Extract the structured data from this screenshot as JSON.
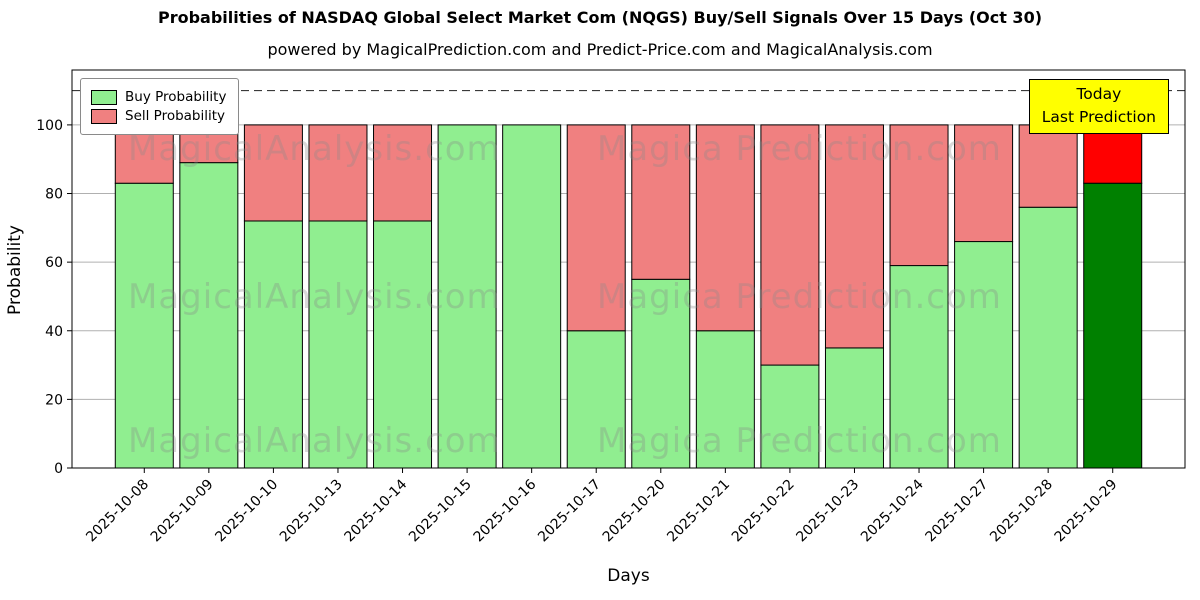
{
  "header": {
    "title": "Probabilities of NASDAQ Global Select Market Com (NQGS) Buy/Sell Signals Over 15 Days (Oct 30)",
    "subtitle": "powered by MagicalPrediction.com and Predict-Price.com and MagicalAnalysis.com"
  },
  "axes": {
    "xlabel": "Days",
    "ylabel": "Probability"
  },
  "legend": {
    "items": [
      {
        "label": "Buy Probability",
        "color": "#90ee90"
      },
      {
        "label": "Sell Probability",
        "color": "#f08080"
      }
    ]
  },
  "annotation": {
    "line1": "Today",
    "line2": "Last Prediction",
    "bg": "#ffff00",
    "border": "#000000"
  },
  "watermarks": {
    "rows": [
      {
        "left": "MagicalAnalysis.com",
        "right": "Magica Prediction.com"
      },
      {
        "left": "MagicalAnalysis.com",
        "right": "Magica Prediction.com"
      },
      {
        "left": "MagicalAnalysis.com",
        "right": "Magica Prediction.com"
      }
    ]
  },
  "chart_data": {
    "type": "bar",
    "stacked": true,
    "title": "Probabilities of NASDAQ Global Select Market Com (NQGS) Buy/Sell Signals Over 15 Days (Oct 30)",
    "xlabel": "Days",
    "ylabel": "Probability",
    "categories": [
      "2025-10-08",
      "2025-10-09",
      "2025-10-10",
      "2025-10-13",
      "2025-10-14",
      "2025-10-15",
      "2025-10-16",
      "2025-10-17",
      "2025-10-20",
      "2025-10-21",
      "2025-10-22",
      "2025-10-23",
      "2025-10-24",
      "2025-10-27",
      "2025-10-28",
      "2025-10-29"
    ],
    "series": [
      {
        "name": "Buy Probability",
        "color": "#90ee90",
        "last_bar_color": "#008000",
        "values": [
          83,
          89,
          72,
          72,
          72,
          100,
          100,
          40,
          55,
          40,
          30,
          35,
          59,
          66,
          76,
          83
        ]
      },
      {
        "name": "Sell Probability",
        "color": "#f08080",
        "last_bar_color": "#ff0000",
        "values": [
          17,
          11,
          28,
          28,
          28,
          0,
          0,
          60,
          45,
          60,
          70,
          65,
          41,
          34,
          24,
          17
        ]
      }
    ],
    "yticks": [
      0,
      20,
      40,
      60,
      80,
      100
    ],
    "ylim": [
      0,
      116
    ],
    "dashed_line_y": 110,
    "grid": true,
    "legend_position": "upper-left",
    "bar_edge_color": "#000000",
    "gridline_color": "#b0b0b0"
  }
}
